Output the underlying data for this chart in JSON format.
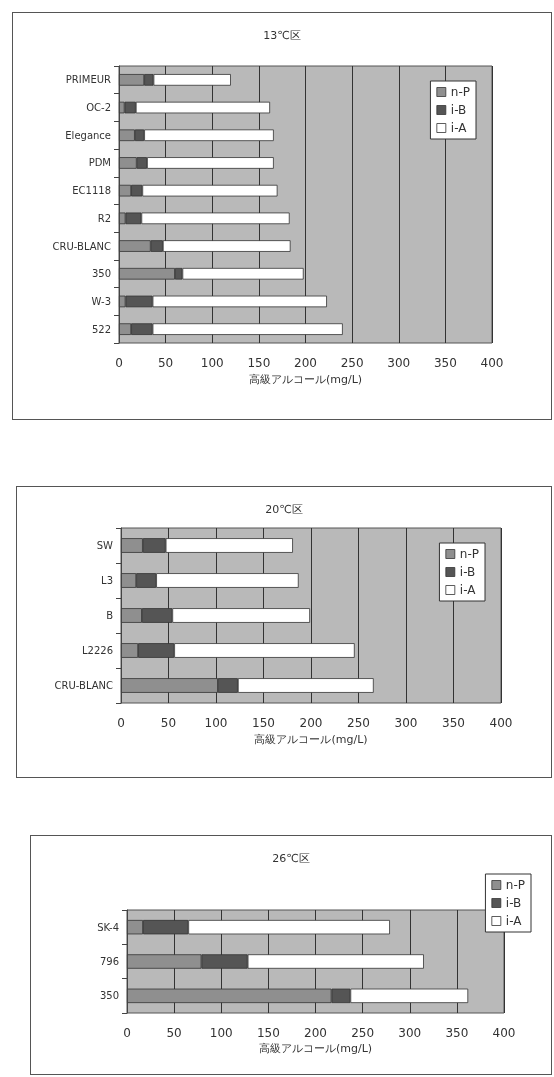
{
  "chart_data": [
    {
      "type": "bar",
      "title": "13℃区",
      "xlabel": "高級アルコール(mg/L)",
      "orientation": "horizontal",
      "stacked": true,
      "categories": [
        "PRIMEUR",
        "OC-2",
        "Elegance",
        "PDM",
        "EC1118",
        "R2",
        "CRU-BLANC",
        "350",
        "W-3",
        "522"
      ],
      "series": [
        {
          "name": "n-P",
          "color": "#8f8f8f",
          "values": [
            27,
            6,
            17,
            19,
            13,
            7,
            34,
            60,
            7,
            13
          ]
        },
        {
          "name": "i-B",
          "color": "#555555",
          "values": [
            10,
            12,
            10,
            11,
            12,
            17,
            13,
            8,
            29,
            23
          ]
        },
        {
          "name": "i-A",
          "color": "#ffffff",
          "values": [
            83,
            144,
            139,
            136,
            145,
            159,
            137,
            130,
            187,
            204
          ]
        }
      ],
      "xlim": [
        0,
        400
      ],
      "xticks": [
        0,
        50,
        100,
        150,
        200,
        250,
        300,
        350,
        400
      ],
      "grid": "x",
      "legend": "top right"
    },
    {
      "type": "bar",
      "title": "20℃区",
      "xlabel": "高級アルコール(mg/L)",
      "orientation": "horizontal",
      "stacked": true,
      "categories": [
        "SW",
        "L3",
        "B",
        "L2226",
        "CRU-BLANC"
      ],
      "series": [
        {
          "name": "n-P",
          "color": "#8f8f8f",
          "values": [
            23,
            16,
            22,
            18,
            102
          ]
        },
        {
          "name": "i-B",
          "color": "#555555",
          "values": [
            24,
            21,
            32,
            38,
            21
          ]
        },
        {
          "name": "i-A",
          "color": "#ffffff",
          "values": [
            134,
            150,
            145,
            190,
            143
          ]
        }
      ],
      "xlim": [
        0,
        400
      ],
      "xticks": [
        0,
        50,
        100,
        150,
        200,
        250,
        300,
        350,
        400
      ],
      "grid": "x",
      "legend": "top right"
    },
    {
      "type": "bar",
      "title": "26℃区",
      "xlabel": "高級アルコール(mg/L)",
      "orientation": "horizontal",
      "stacked": true,
      "categories": [
        "SK-4",
        "796",
        "350"
      ],
      "series": [
        {
          "name": "n-P",
          "color": "#8f8f8f",
          "values": [
            17,
            79,
            217
          ]
        },
        {
          "name": "i-B",
          "color": "#555555",
          "values": [
            48,
            49,
            20
          ]
        },
        {
          "name": "i-A",
          "color": "#ffffff",
          "values": [
            214,
            187,
            125
          ]
        }
      ],
      "xlim": [
        0,
        400
      ],
      "xticks": [
        0,
        50,
        100,
        150,
        200,
        250,
        300,
        350,
        400
      ],
      "grid": "x",
      "legend": "right"
    }
  ]
}
